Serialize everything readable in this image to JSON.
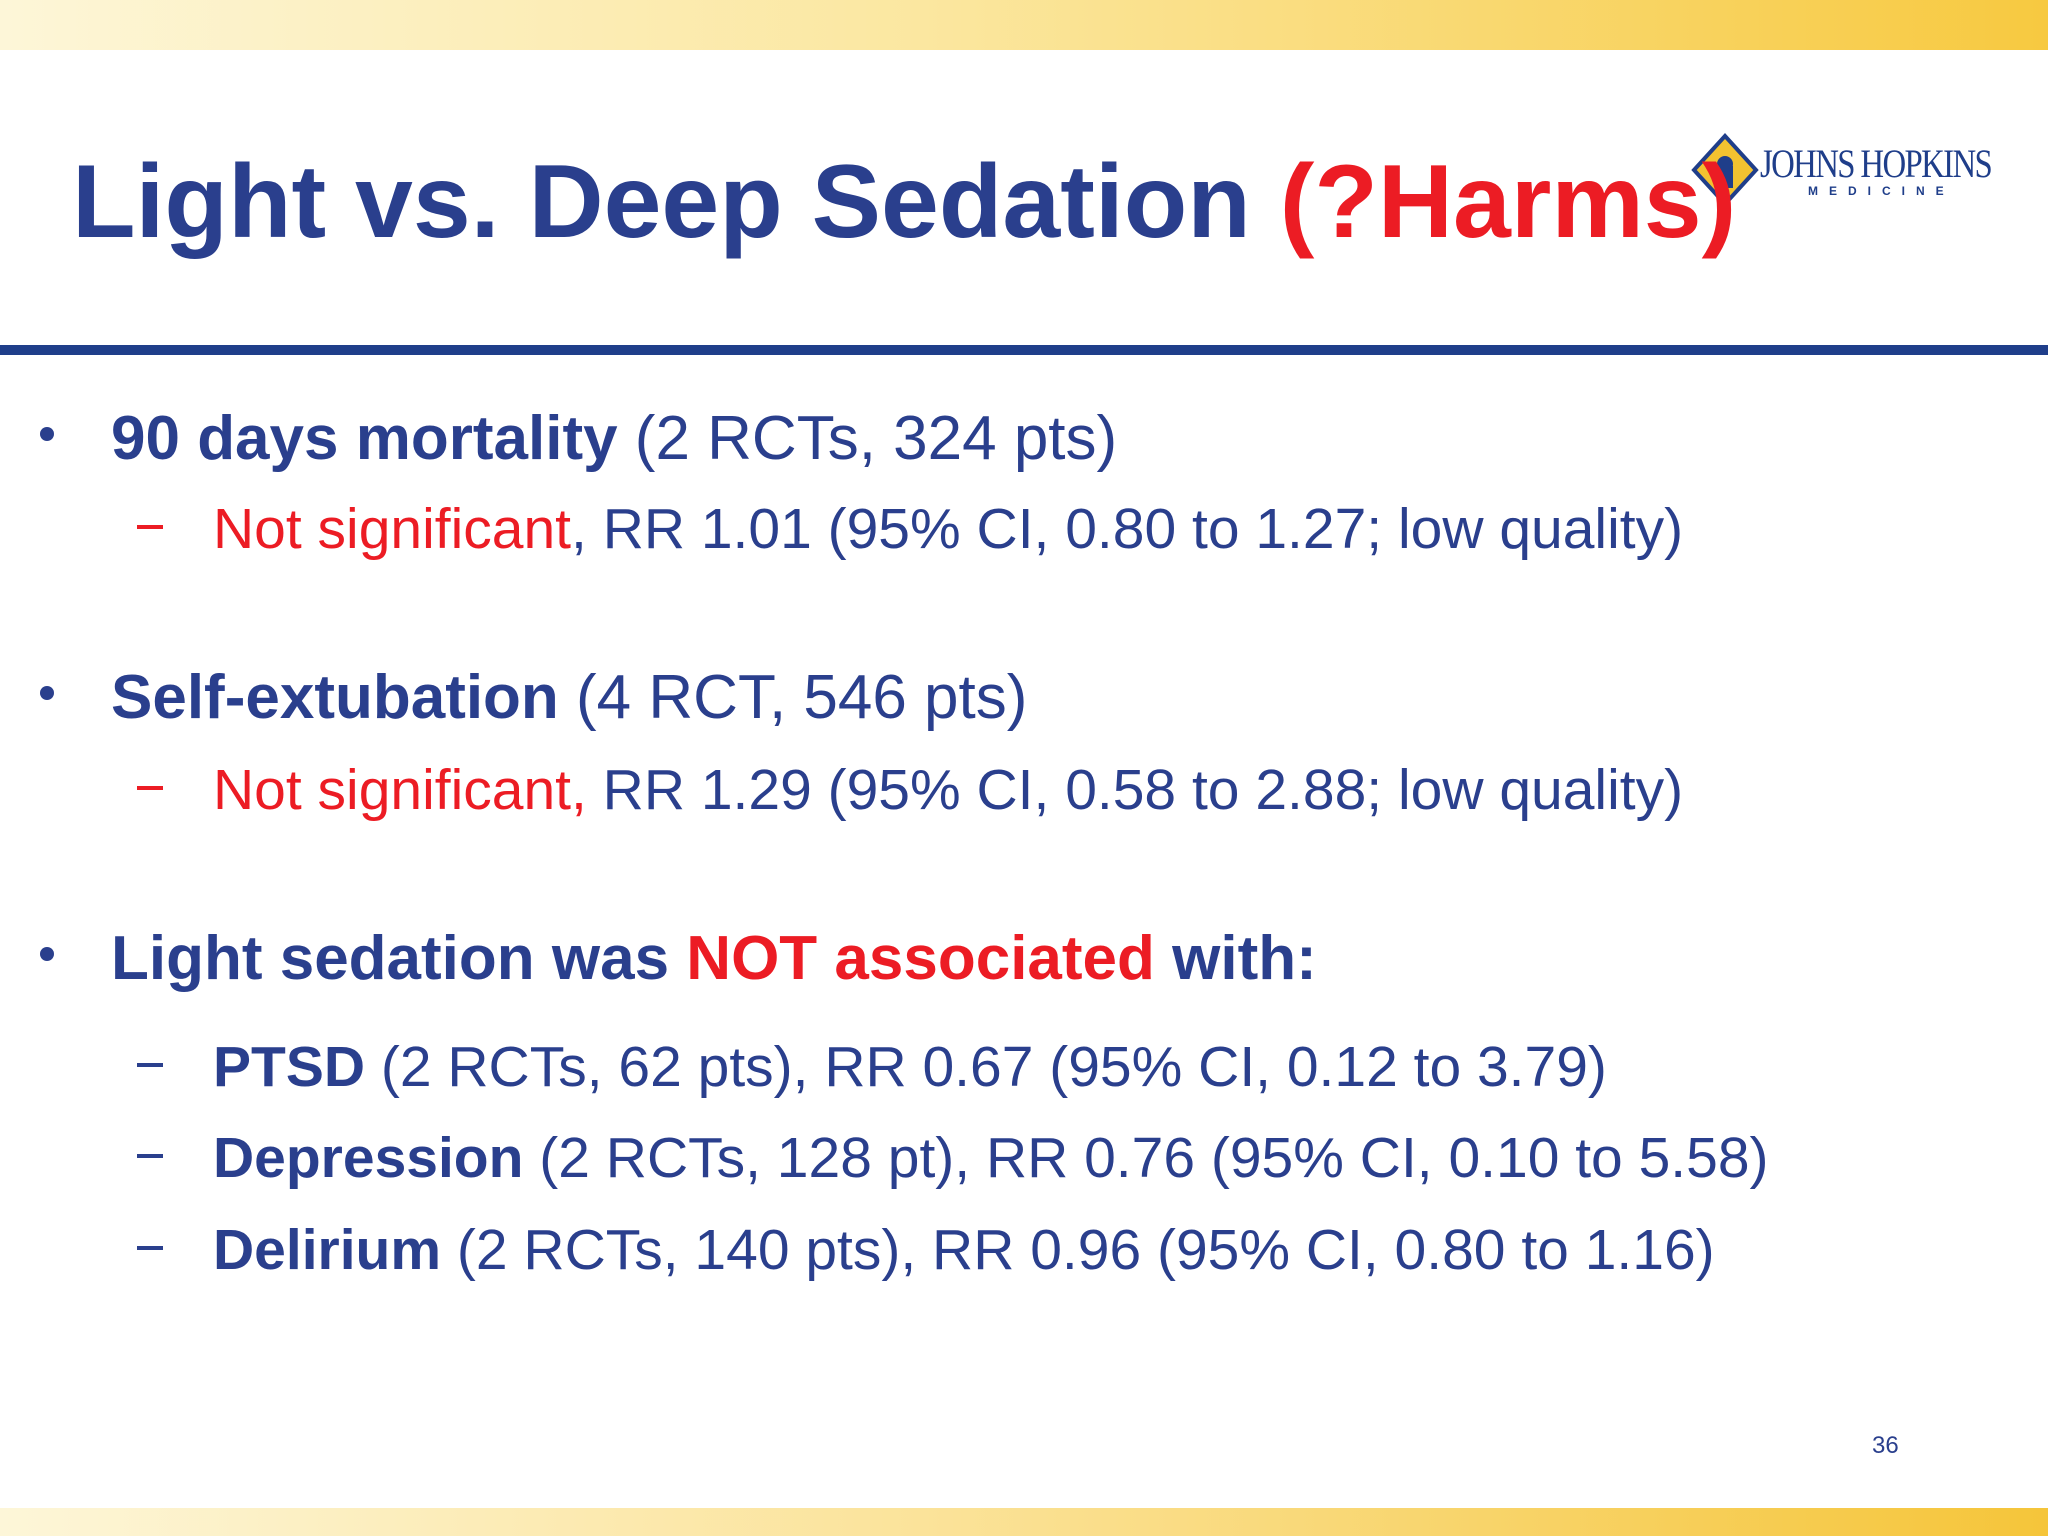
{
  "logo": {
    "name": "JOHNS HOPKINS",
    "sub": "MEDICINE"
  },
  "title": [
    "Light vs. Deep Sedation ",
    "(?Harms)"
  ],
  "bullets": [
    {
      "text": [
        "90 days mortality",
        " (2 RCTs, 324 pts)"
      ],
      "subs": [
        [
          "Not significant",
          ", RR 1.01 (95% CI, 0.80 to 1.27; low quality)"
        ]
      ]
    },
    {
      "text": [
        "Self-extubation",
        " (4 RCT, 546 pts)"
      ],
      "subs": [
        [
          "Not significant,",
          " RR 1.29 (95% CI, 0.58 to 2.88; low quality)"
        ]
      ]
    },
    {
      "text": [
        "Light sedation was ",
        "NOT associated",
        " with:"
      ],
      "subs": [
        [
          "PTSD",
          " (2 RCTs, 62 pts), RR 0.67 (95% CI, 0.12 to 3.79)"
        ],
        [
          "Depression",
          " (2 RCTs, 128 pt), RR 0.76 (95% CI, 0.10 to 5.58)"
        ],
        [
          "Delirium",
          " (2 RCTs, 140 pts), RR 0.96 (95% CI, 0.80 to 1.16)"
        ]
      ]
    }
  ],
  "page_number": "36"
}
